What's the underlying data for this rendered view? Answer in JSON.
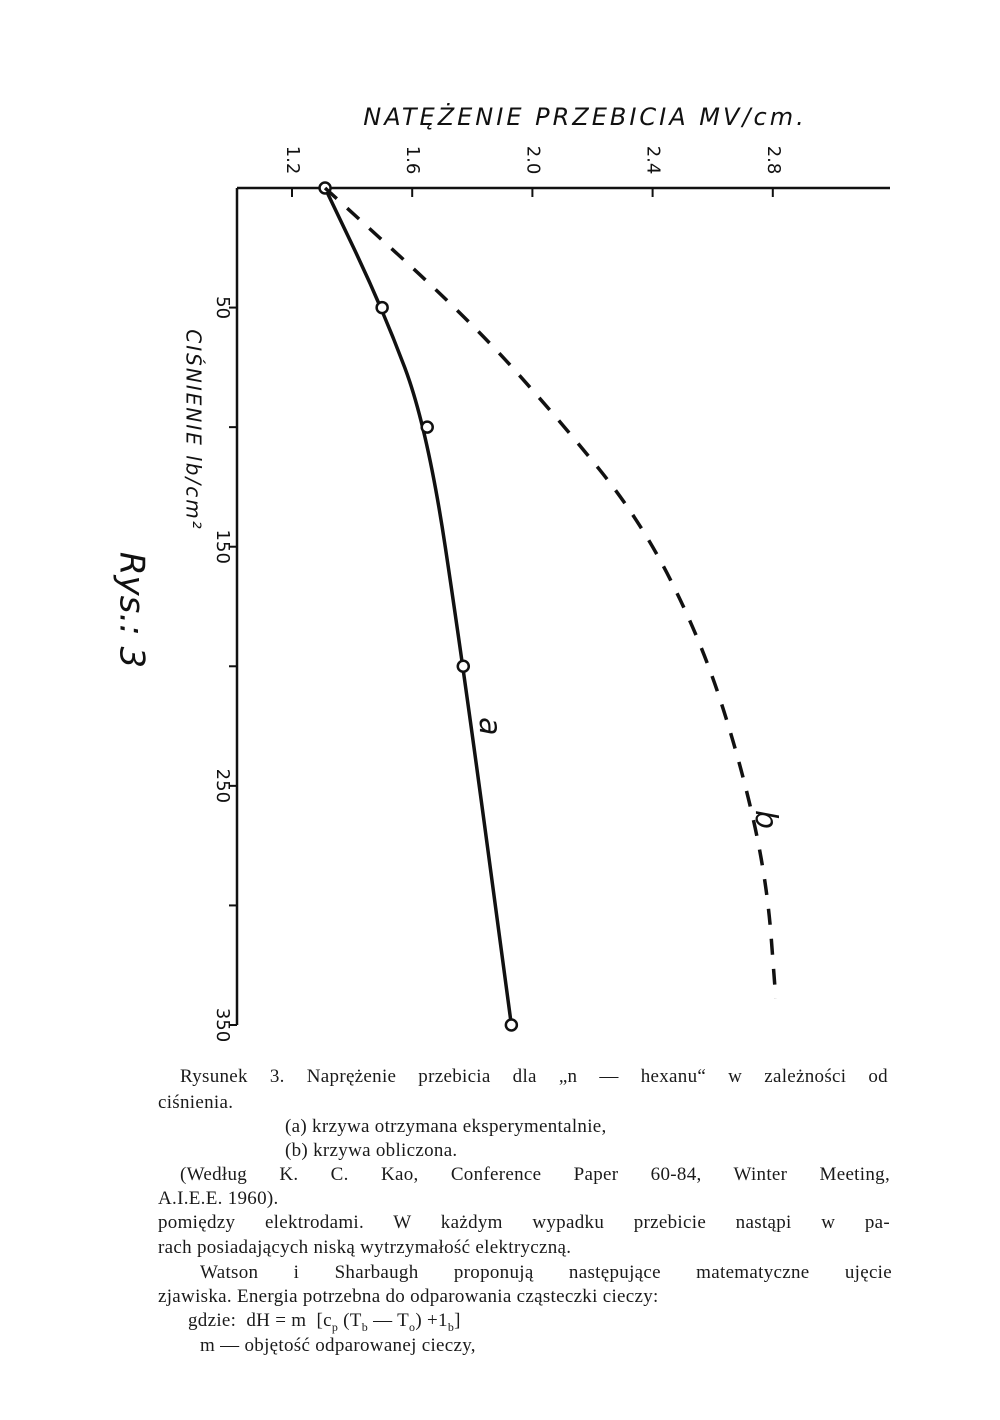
{
  "chart_data": {
    "type": "line",
    "title": "NATĘŻENIE PRZEBICIA MV/cm.",
    "y_label": "CIŚNIENIE lb/cm²",
    "figure_label": "Rys.: 3",
    "x_axis_position": "top",
    "y_inverted": true,
    "xlim": [
      1.017,
      3.19
    ],
    "xticks": [
      1.2,
      1.6,
      2.0,
      2.4,
      2.8
    ],
    "ylim": [
      0,
      350
    ],
    "yticks": [
      50,
      150,
      250,
      350
    ],
    "yticks_minor": [
      100,
      200,
      300
    ],
    "series": [
      {
        "name": "a",
        "color": "#111111",
        "dashed": false,
        "markers": true,
        "x": [
          1.31,
          1.5,
          1.65,
          1.77,
          1.93
        ],
        "values": [
          0,
          50,
          100,
          200,
          350
        ]
      },
      {
        "name": "b",
        "color": "#111111",
        "dashed": true,
        "markers": false,
        "x": [
          1.31,
          1.79,
          2.09,
          2.36,
          2.56,
          2.69,
          2.78,
          2.81
        ],
        "values": [
          0,
          55,
          97,
          139,
          189,
          239,
          289,
          339
        ]
      }
    ]
  },
  "text": {
    "lines": [
      "Rysunek 3. Naprężenie przebicia dla „n — hexanu“ w zależności od",
      "ciśnienia.",
      "(a) krzywa otrzymana eksperymentalnie,",
      "(b) krzywa obliczona.",
      "(Według K. C. Kao, Conference Paper 60-84, Winter Meeting,",
      "A.I.E.E. 1960).",
      "pomiędzy elektrodami. W każdym wypadku przebicie nastąpi w pa-",
      "rach posiadających niską wytrzymałość elektryczną.",
      "Watson i Sharbaugh proponują następujące matematyczne ujęcie",
      "zjawiska. Energia potrzebna do odparowania cząsteczki cieczy:"
    ],
    "formula": [
      "gdzie:  dH = m  [c",
      "p",
      " (T",
      "b",
      " — T",
      "o",
      ") +1",
      "b",
      "]"
    ],
    "last_line": "m — objętość odparowanej cieczy,"
  }
}
